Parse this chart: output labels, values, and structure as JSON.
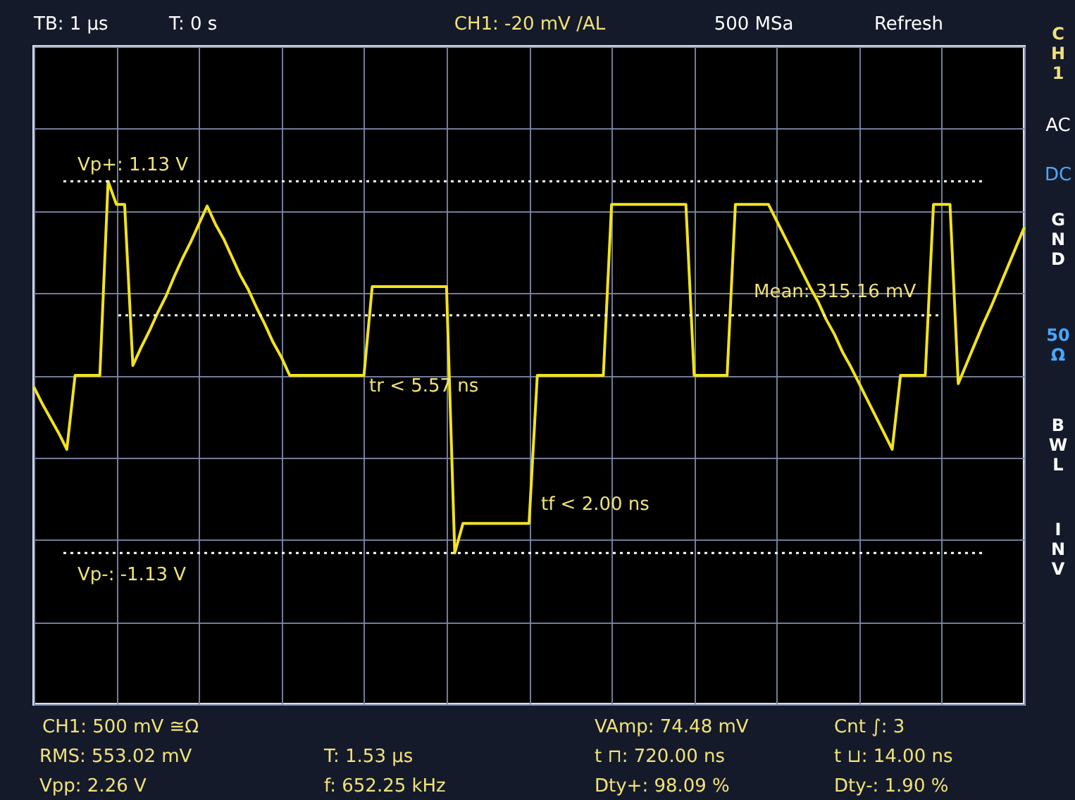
{
  "chart_data": {
    "type": "line",
    "grid": true,
    "tick_labels": false,
    "ylim": [
      -2.05,
      1.95
    ],
    "yticks": [
      {
        "value": -2.05,
        "label": null
      },
      {
        "value": -1.55,
        "label": null
      },
      {
        "value": -1.05,
        "label": null
      },
      {
        "value": -0.55,
        "label": null
      },
      {
        "value": -0.05,
        "label": null
      },
      {
        "value": 0.45,
        "label": null
      },
      {
        "value": 0.95,
        "label": null
      },
      {
        "value": 1.45,
        "label": null
      },
      {
        "value": 1.95,
        "label": null
      }
    ],
    "categories": [
      null,
      null,
      null,
      null,
      null,
      null,
      null,
      null,
      null,
      null,
      null,
      null,
      null,
      null,
      null,
      null,
      null,
      null,
      null,
      null,
      null,
      null,
      null,
      null,
      null,
      null,
      null,
      null,
      null,
      null,
      null,
      null,
      null,
      null,
      null,
      null,
      null,
      null,
      null,
      null,
      null,
      null,
      null,
      null,
      null,
      null,
      null,
      null,
      null,
      null,
      null,
      null,
      null,
      null,
      null,
      null,
      null,
      null,
      null,
      null,
      null,
      null,
      null,
      null,
      null,
      null,
      null,
      null,
      null,
      null,
      null,
      null,
      null,
      null,
      null,
      null,
      null,
      null,
      null,
      null,
      null,
      null,
      null,
      null,
      null,
      null,
      null,
      null,
      null,
      null,
      null,
      null,
      null,
      null,
      null,
      null,
      null,
      null,
      null,
      null,
      null,
      null,
      null,
      null,
      null,
      null,
      null,
      null,
      null,
      null,
      null,
      null,
      null,
      null,
      null,
      null,
      null,
      null,
      null,
      null,
      null
    ],
    "series": [
      {
        "color": "#f2e31c",
        "values": [
          -0.12,
          -0.22,
          -0.31,
          -0.4,
          -0.5,
          -0.05,
          -0.05,
          -0.05,
          -0.05,
          1.13,
          0.99,
          0.99,
          0.01,
          0.12,
          0.22,
          0.33,
          0.43,
          0.55,
          0.66,
          0.76,
          0.87,
          0.98,
          0.87,
          0.78,
          0.67,
          0.56,
          0.47,
          0.36,
          0.26,
          0.15,
          0.06,
          -0.05,
          -0.05,
          -0.05,
          -0.05,
          -0.05,
          -0.05,
          -0.05,
          -0.05,
          -0.05,
          -0.05,
          0.49,
          0.49,
          0.49,
          0.49,
          0.49,
          0.49,
          0.49,
          0.49,
          0.49,
          0.49,
          -1.13,
          -0.95,
          -0.95,
          -0.95,
          -0.95,
          -0.95,
          -0.95,
          -0.95,
          -0.95,
          -0.95,
          -0.05,
          -0.05,
          -0.05,
          -0.05,
          -0.05,
          -0.05,
          -0.05,
          -0.05,
          -0.05,
          0.99,
          0.99,
          0.99,
          0.99,
          0.99,
          0.99,
          0.99,
          0.99,
          0.99,
          0.99,
          -0.05,
          -0.05,
          -0.05,
          -0.05,
          -0.05,
          0.99,
          0.99,
          0.99,
          0.99,
          0.99,
          0.89,
          0.79,
          0.69,
          0.59,
          0.49,
          0.4,
          0.29,
          0.2,
          0.09,
          0.0,
          -0.1,
          -0.2,
          -0.3,
          -0.4,
          -0.5,
          -0.05,
          -0.05,
          -0.05,
          -0.05,
          0.99,
          0.99,
          0.99,
          -0.1,
          0.02,
          0.14,
          0.26,
          0.37,
          0.49,
          0.61,
          0.73,
          0.85
        ]
      }
    ],
    "ref_lines": [
      {
        "axis": "y",
        "value": 1.13,
        "label": "Vp+: 1.13 V",
        "line_style": "dotted",
        "color": "#ffffff"
      },
      {
        "axis": "y",
        "value": -1.13,
        "label": "Vp-: -1.13 V",
        "line_style": "dotted",
        "color": "#ffffff"
      },
      {
        "axis": "y",
        "value": 0.31516,
        "label": "Mean: 315.16 mV",
        "line_style": "dotted",
        "color": "#ffffff"
      }
    ],
    "annotations": [
      "TB: 1 µs",
      "T: 0 s",
      "CH1: -20 mV /AL",
      "500 MSa",
      "Refresh",
      "CH1",
      "AC",
      "DC",
      "GND",
      "50 Ω",
      "BWL",
      "INV",
      "CH1: 500 mV ≅Ω",
      "RMS: 553.02 mV",
      "Vpp: 2.26 V",
      "T: 1.53 µs",
      "f: 652.25 kHz",
      "VAmp: 74.48 mV",
      "t ⊓: 720.00 ns",
      "Dty+: 98.09 %",
      "Cnt ∫: 3",
      "t ⊔: 14.00 ns",
      "Dty-: 1.90 %",
      "tr < 5.57 ns",
      "tf < 2.00 ns"
    ]
  }
}
